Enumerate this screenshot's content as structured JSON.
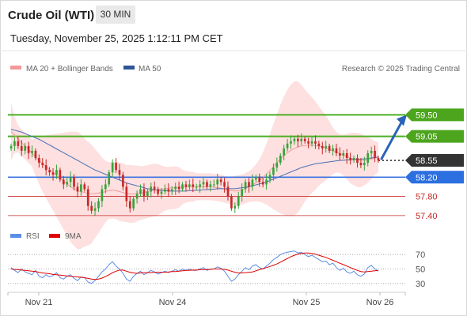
{
  "header": {
    "title": "Crude Oil (WTI)",
    "timeframe": "30 MIN",
    "datetime": "Tuesday, November 25, 2025 1:12:11 PM CET"
  },
  "legend": {
    "ma20_label": "MA 20 + Bollinger Bands",
    "ma50_label": "MA 50",
    "credit": "Research © 2025 Trading Central",
    "rsi_label": "RSI",
    "ma9_label": "9MA"
  },
  "colors": {
    "up": "#37a33a",
    "down": "#c62828",
    "resistance": "#4caf22",
    "support": "#3b73e0",
    "current": "#333333",
    "bollinger": "#fde0df",
    "ma20": "#f29a9a",
    "ma50": "#4a6fb5",
    "rsi": "#5b8ee6",
    "ma9": "#e00000",
    "arrow": "#2a64b8"
  },
  "chart_data": [
    {
      "type": "candlestick",
      "x_ticks": [
        "Nov 21",
        "Nov 24",
        "Nov 25",
        "Nov 26"
      ],
      "ylim": [
        57.2,
        60.0
      ],
      "levels": [
        {
          "label": "59.50",
          "value": 59.5,
          "kind": "resistance"
        },
        {
          "label": "59.05",
          "value": 59.05,
          "kind": "resistance"
        },
        {
          "label": "58.55",
          "value": 58.55,
          "kind": "current"
        },
        {
          "label": "58.20",
          "value": 58.2,
          "kind": "support"
        },
        {
          "label": "57.80",
          "value": 57.8,
          "kind": "minor"
        },
        {
          "label": "57.40",
          "value": 57.4,
          "kind": "minor"
        }
      ],
      "closes": [
        58.85,
        58.95,
        58.85,
        58.75,
        58.85,
        58.7,
        58.75,
        58.6,
        58.5,
        58.45,
        58.35,
        58.3,
        58.25,
        58.35,
        58.15,
        58.05,
        58.1,
        58.2,
        58.0,
        57.9,
        58.05,
        57.95,
        57.6,
        57.5,
        57.55,
        57.7,
        57.95,
        58.05,
        58.3,
        58.5,
        58.35,
        58.25,
        58.0,
        57.7,
        57.55,
        57.75,
        57.85,
        57.95,
        57.8,
        57.9,
        58.0,
        57.95,
        57.85,
        57.9,
        57.95,
        57.9,
        57.95,
        58.0,
        57.95,
        58.05,
        58.0,
        58.05,
        58.0,
        58.0,
        58.05,
        58.1,
        58.0,
        58.05,
        58.05,
        58.15,
        58.1,
        58.0,
        57.8,
        57.55,
        57.6,
        57.8,
        57.95,
        58.1,
        58.0,
        58.15,
        58.2,
        58.1,
        58.05,
        58.15,
        58.25,
        58.4,
        58.5,
        58.65,
        58.8,
        58.9,
        58.95,
        59.0,
        58.95,
        59.0,
        58.95,
        58.9,
        58.95,
        58.9,
        58.85,
        58.8,
        58.85,
        58.75,
        58.8,
        58.7,
        58.65,
        58.7,
        58.6,
        58.55,
        58.6,
        58.5,
        58.45,
        58.5,
        58.7,
        58.75,
        58.6,
        58.55
      ],
      "ma20": [
        59.15,
        59.08,
        59.0,
        58.92,
        58.85,
        58.78,
        58.7,
        58.62,
        58.55,
        58.48,
        58.42,
        58.36,
        58.3,
        58.24,
        58.18,
        58.12,
        58.06,
        58.0,
        57.96,
        57.92,
        57.9,
        57.88,
        57.86,
        57.85,
        57.86,
        57.87,
        57.88,
        57.9,
        57.92,
        57.93,
        57.92,
        57.9,
        57.88,
        57.86,
        57.85,
        57.85,
        57.86,
        57.87,
        57.88,
        57.9,
        57.92,
        57.93,
        57.94,
        57.95,
        57.96,
        57.97,
        57.98,
        57.98,
        57.99,
        57.99,
        58.0,
        58.0,
        58.0,
        58.0,
        58.0,
        58.0,
        58.0,
        58.0,
        57.99,
        57.98,
        57.97,
        57.95,
        57.93,
        57.92,
        57.91,
        57.92,
        57.94,
        57.97,
        58.0,
        58.04,
        58.08,
        58.13,
        58.19,
        58.26,
        58.34,
        58.42,
        58.5,
        58.58,
        58.65,
        58.71,
        58.76,
        58.8,
        58.83,
        58.85,
        58.86,
        58.87,
        58.87,
        58.86,
        58.85,
        58.83,
        58.81,
        58.78,
        58.75,
        58.72,
        58.69,
        58.66,
        58.63,
        58.6,
        58.58,
        58.56,
        58.55,
        58.55,
        58.56,
        58.58,
        58.6,
        58.62
      ],
      "ma50": [
        59.2,
        59.18,
        59.16,
        59.14,
        59.11,
        59.08,
        59.05,
        59.02,
        58.99,
        58.95,
        58.91,
        58.87,
        58.83,
        58.79,
        58.75,
        58.71,
        58.67,
        58.63,
        58.59,
        58.55,
        58.51,
        58.47,
        58.43,
        58.39,
        58.35,
        58.32,
        58.29,
        58.26,
        58.23,
        58.2,
        58.17,
        58.14,
        58.11,
        58.08,
        58.06,
        58.04,
        58.02,
        58.0,
        57.98,
        57.96,
        57.95,
        57.94,
        57.93,
        57.92,
        57.92,
        57.91,
        57.91,
        57.91,
        57.91,
        57.91,
        57.91,
        57.92,
        57.92,
        57.93,
        57.93,
        57.94,
        57.94,
        57.95,
        57.95,
        57.96,
        57.96,
        57.96,
        57.96,
        57.96,
        57.96,
        57.97,
        57.98,
        57.99,
        58.0,
        58.02,
        58.04,
        58.06,
        58.08,
        58.1,
        58.13,
        58.16,
        58.19,
        58.22,
        58.25,
        58.28,
        58.31,
        58.34,
        58.37,
        58.4,
        58.42,
        58.44,
        58.46,
        58.48,
        58.49,
        58.5,
        58.51,
        58.52,
        58.53,
        58.54,
        58.55,
        58.55,
        58.56,
        58.56,
        58.57,
        58.57,
        58.58,
        58.58,
        58.59,
        58.6,
        58.61,
        58.62
      ],
      "projection": {
        "from": 58.55,
        "to": 59.5
      },
      "annotations": [
        "Research © 2025 Trading Central"
      ]
    },
    {
      "type": "line",
      "series": [
        {
          "name": "RSI",
          "values": [
            52,
            48,
            45,
            50,
            46,
            44,
            42,
            48,
            40,
            38,
            42,
            39,
            41,
            45,
            38,
            36,
            40,
            42,
            37,
            34,
            39,
            38,
            32,
            30,
            34,
            40,
            46,
            50,
            56,
            60,
            54,
            50,
            44,
            36,
            33,
            40,
            44,
            47,
            42,
            45,
            48,
            46,
            43,
            45,
            47,
            45,
            47,
            49,
            47,
            50,
            48,
            50,
            48,
            48,
            50,
            52,
            48,
            50,
            50,
            53,
            51,
            47,
            40,
            33,
            36,
            42,
            47,
            52,
            49,
            54,
            56,
            52,
            50,
            54,
            58,
            63,
            66,
            70,
            72,
            73,
            74,
            75,
            72,
            73,
            70,
            67,
            69,
            66,
            63,
            60,
            61,
            56,
            58,
            52,
            48,
            51,
            46,
            44,
            47,
            42,
            40,
            43,
            52,
            55,
            50,
            47
          ]
        },
        {
          "name": "9MA",
          "values": [
            50,
            49.5,
            49,
            48.5,
            48,
            47.5,
            47,
            46.5,
            45.5,
            44.5,
            44,
            43.5,
            42.5,
            42,
            41.5,
            41,
            40.5,
            40,
            39.5,
            39,
            38.5,
            38,
            37,
            36,
            35.5,
            36,
            37.5,
            39.5,
            42,
            45,
            47,
            48.5,
            48.5,
            47,
            45.5,
            44.5,
            44,
            44.5,
            45,
            45,
            45,
            45.5,
            45.5,
            45.5,
            45.5,
            46,
            46.5,
            46.5,
            47,
            47.5,
            48,
            48,
            48.5,
            48.5,
            49,
            49,
            49.5,
            49.5,
            50,
            50,
            50,
            49.5,
            48.5,
            47,
            45.5,
            44.5,
            44.5,
            45,
            45.5,
            46,
            47.5,
            49,
            50.5,
            52,
            53.5,
            55,
            57,
            59.5,
            62,
            64.5,
            67,
            69,
            70.5,
            71.5,
            72,
            72,
            71.5,
            70.5,
            69,
            67.5,
            66,
            64,
            62,
            60,
            58,
            56,
            54,
            52,
            50,
            48,
            46.5,
            46,
            46.5,
            47,
            47.5,
            48
          ]
        }
      ],
      "y_ticks": [
        30,
        50,
        70
      ],
      "ylim": [
        20,
        80
      ]
    }
  ]
}
